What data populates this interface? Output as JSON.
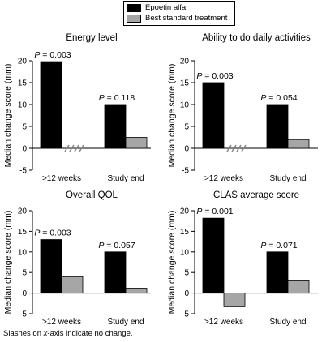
{
  "legend": {
    "items": [
      {
        "label": "Epoetin alfa",
        "color": "#000000"
      },
      {
        "label": "Best standard treatment",
        "color": "#a6a6a6"
      }
    ]
  },
  "footnote": {
    "parts": [
      "Slashes on ",
      "x",
      "-axis indicate no change."
    ]
  },
  "chart_data": [
    {
      "type": "bar",
      "title": "Energy level",
      "ylabel": "Median change score (mm)",
      "ylim": [
        -5,
        20
      ],
      "yticks": [
        -5,
        0,
        5,
        10,
        15,
        20
      ],
      "categories": [
        ">12 weeks",
        "Study end"
      ],
      "series": [
        {
          "name": "Epoetin alfa",
          "values": [
            19.8,
            10
          ]
        },
        {
          "name": "Best standard treatment",
          "values": [
            0,
            2.5
          ]
        }
      ],
      "no_change": [
        [
          false,
          true
        ],
        [
          false,
          false
        ]
      ],
      "p_values": [
        "0.003",
        "0.118"
      ]
    },
    {
      "type": "bar",
      "title": "Ability to do daily activities",
      "ylabel": "Median change score (mm)",
      "ylim": [
        -5,
        20
      ],
      "yticks": [
        -5,
        0,
        5,
        10,
        15,
        20
      ],
      "categories": [
        ">12 weeks",
        "Study end"
      ],
      "series": [
        {
          "name": "Epoetin alfa",
          "values": [
            15,
            10
          ]
        },
        {
          "name": "Best standard treatment",
          "values": [
            0,
            2
          ]
        }
      ],
      "no_change": [
        [
          false,
          true
        ],
        [
          false,
          false
        ]
      ],
      "p_values": [
        "0.003",
        "0.054"
      ]
    },
    {
      "type": "bar",
      "title": "Overall QOL",
      "ylabel": "Median change score (mm)",
      "ylim": [
        -5,
        20
      ],
      "yticks": [
        -5,
        0,
        5,
        10,
        15,
        20
      ],
      "categories": [
        ">12 weeks",
        "Study end"
      ],
      "series": [
        {
          "name": "Epoetin alfa",
          "values": [
            13,
            10
          ]
        },
        {
          "name": "Best standard treatment",
          "values": [
            4,
            1.2
          ]
        }
      ],
      "no_change": [
        [
          false,
          false
        ],
        [
          false,
          false
        ]
      ],
      "p_values": [
        "0.003",
        "0.057"
      ]
    },
    {
      "type": "bar",
      "title": "CLAS average score",
      "ylabel": "Median change score (mm)",
      "ylim": [
        -5,
        20
      ],
      "yticks": [
        -5,
        0,
        5,
        10,
        15,
        20
      ],
      "categories": [
        ">12 weeks",
        "Study end"
      ],
      "series": [
        {
          "name": "Epoetin alfa",
          "values": [
            18.2,
            10
          ]
        },
        {
          "name": "Best standard treatment",
          "values": [
            -3.3,
            3
          ]
        }
      ],
      "no_change": [
        [
          false,
          false
        ],
        [
          false,
          false
        ]
      ],
      "p_values": [
        "0.001",
        "0.071"
      ]
    }
  ]
}
